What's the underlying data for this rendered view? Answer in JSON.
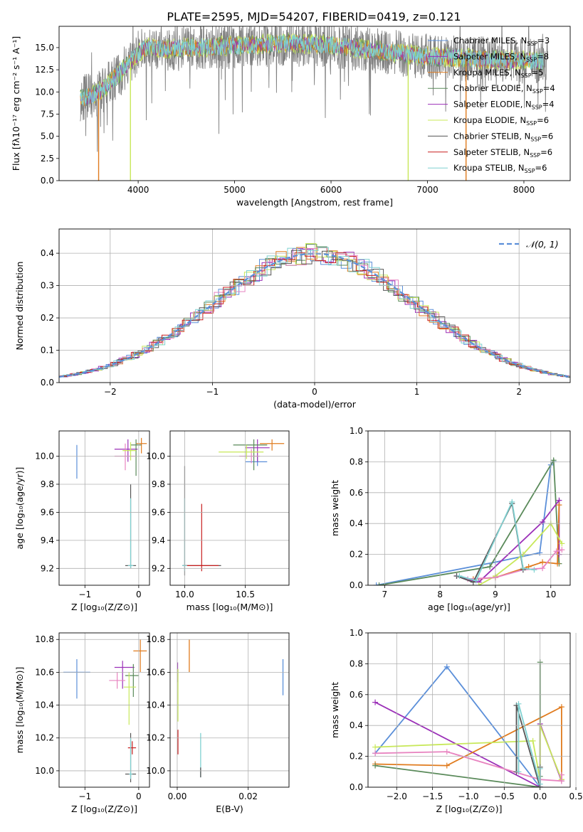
{
  "figure_title": "PLATE=2595, MJD=54207, FIBERID=0419, z=0.121",
  "colors": {
    "chabrier_miles": "#5b8fd9",
    "salpeter_miles": "#9b30b8",
    "kroupa_miles": "#e07b1e",
    "chabrier_elodie": "#5a8a5a",
    "salpeter_elodie": "#9b30b8",
    "kroupa_elodie": "#c8e85a",
    "chabrier_stelib": "#555555",
    "salpeter_stelib": "#c81e1e",
    "kroupa_stelib": "#7fd1d1",
    "pink": "#e884c0"
  },
  "chart_data": [
    {
      "id": "spectrum",
      "type": "line",
      "xlabel": "wavelength [Angstrom, rest frame]",
      "ylabel": "Flux [fλ10⁻¹⁷ erg cm⁻² s⁻¹ A⁻¹]",
      "xlim": [
        3180,
        8480
      ],
      "ylim": [
        0,
        17.4
      ],
      "xticks": [
        "4000",
        "5000",
        "6000",
        "7000",
        "8000"
      ],
      "yticks": [
        "0.0",
        "2.5",
        "5.0",
        "7.5",
        "10.0",
        "12.5",
        "15.0"
      ],
      "legend_position": "top-right",
      "legend": [
        {
          "label": "Chabrier MILES, N",
          "sub": "SSP",
          "suffix": "=3",
          "color": "#5b8fd9"
        },
        {
          "label": "Salpeter MILES, N",
          "sub": "SSP",
          "suffix": "=8",
          "color": "#9b30b8"
        },
        {
          "label": "Kroupa MILES, N",
          "sub": "SSP",
          "suffix": "=5",
          "color": "#e07b1e"
        },
        {
          "label": "Chabrier ELODIE, N",
          "sub": "SSP",
          "suffix": "=4",
          "color": "#5a8a5a"
        },
        {
          "label": "Salpeter ELODIE, N",
          "sub": "SSP",
          "suffix": "=4",
          "color": "#9b30b8"
        },
        {
          "label": "Kroupa ELODIE, N",
          "sub": "SSP",
          "suffix": "=6",
          "color": "#c8e85a"
        },
        {
          "label": "Chabrier STELIB, N",
          "sub": "SSP",
          "suffix": "=6",
          "color": "#555555"
        },
        {
          "label": "Salpeter STELIB, N",
          "sub": "SSP",
          "suffix": "=6",
          "color": "#c81e1e"
        },
        {
          "label": "Kroupa STELIB, N",
          "sub": "SSP",
          "suffix": "=6",
          "color": "#7fd1d1"
        }
      ],
      "continuum": {
        "x": [
          3400,
          3500,
          3600,
          3700,
          3800,
          3900,
          4000,
          4100,
          4200,
          4300,
          4500,
          5000,
          5500,
          6000,
          6500,
          7000,
          7500,
          8000,
          8250
        ],
        "y": [
          9.3,
          9.5,
          10.0,
          11.0,
          12.0,
          13.2,
          14.4,
          15.1,
          14.9,
          14.8,
          15.0,
          15.2,
          15.5,
          15.3,
          14.6,
          14.0,
          13.7,
          13.5,
          13.4
        ]
      },
      "drops": [
        {
          "x": 3590,
          "color": "#e07b1e"
        },
        {
          "x": 3920,
          "color": "#c8e85a"
        },
        {
          "x": 6800,
          "color": "#c8e85a"
        },
        {
          "x": 7400,
          "color": "#e07b1e"
        }
      ]
    },
    {
      "id": "residuals",
      "type": "line",
      "xlabel": "(data-model)/error",
      "ylabel": "Normed distribution",
      "xlim": [
        -2.5,
        2.5
      ],
      "ylim": [
        0,
        0.475
      ],
      "xticks": [
        "−2",
        "−1",
        "0",
        "1",
        "2"
      ],
      "yticks": [
        "0.0",
        "0.1",
        "0.2",
        "0.3",
        "0.4"
      ],
      "legend_position": "top-right",
      "legend": [
        {
          "label": "𝒩(0, 1)",
          "color": "#5b8fd9"
        }
      ],
      "bin_width": 0.1
    },
    {
      "id": "age-vs-Z",
      "type": "scatter",
      "xlabel": "Z [log₁₀(Z/Z⊙)]",
      "ylabel": "age  [log₁₀(age/yr)]",
      "xlim": [
        -1.48,
        0.2
      ],
      "ylim": [
        9.08,
        10.18
      ],
      "xticks": [
        "−1",
        "0"
      ],
      "yticks": [
        "9.2",
        "9.4",
        "9.6",
        "9.8",
        "10.0"
      ],
      "points": [
        {
          "x": -1.15,
          "y": 9.96,
          "xl": 1.35,
          "xh": 0.9,
          "yl": 9.84,
          "yh": 10.08,
          "color": "#5b8fd9"
        },
        {
          "x": -0.2,
          "y": 10.05,
          "xl": -0.45,
          "xh": -0.02,
          "yl": 9.96,
          "yh": 10.12,
          "color": "#9b30b8"
        },
        {
          "x": 0.05,
          "y": 10.09,
          "xl": -0.05,
          "xh": 0.15,
          "yl": 10.02,
          "yh": 10.13,
          "color": "#e07b1e"
        },
        {
          "x": -0.05,
          "y": 10.08,
          "xl": -0.15,
          "xh": 0.05,
          "yl": 9.86,
          "yh": 10.12,
          "color": "#5a8a5a"
        },
        {
          "x": -0.25,
          "y": 10.0,
          "xl": -0.45,
          "xh": -0.05,
          "yl": 9.9,
          "yh": 10.09,
          "color": "#e884c0"
        },
        {
          "x": -0.15,
          "y": 10.04,
          "xl": -0.3,
          "xh": -0.05,
          "yl": 9.97,
          "yh": 10.1,
          "color": "#c8e85a"
        },
        {
          "x": -0.15,
          "y": 9.22,
          "xl": -0.25,
          "xh": -0.05,
          "yl": 9.2,
          "yh": 9.8,
          "color": "#555555"
        },
        {
          "x": -0.15,
          "y": 9.22,
          "xl": -0.2,
          "xh": -0.1,
          "yl": 9.2,
          "yh": 9.7,
          "color": "#7fd1d1"
        }
      ]
    },
    {
      "id": "age-vs-mass",
      "type": "scatter",
      "xlabel": "mass [log₁₀(M/M⊙)]",
      "ylabel": "",
      "xlim": [
        9.88,
        10.86
      ],
      "ylim": [
        9.08,
        10.18
      ],
      "xticks": [
        "10.0",
        "10.5"
      ],
      "yticks": [
        "9.2",
        "9.4",
        "9.6",
        "9.8",
        "10.0"
      ],
      "points": [
        {
          "x": 10.6,
          "y": 9.96,
          "xl": 10.5,
          "xh": 10.68,
          "yl": 9.93,
          "yh": 10.0,
          "color": "#5b8fd9"
        },
        {
          "x": 10.6,
          "y": 10.06,
          "xl": 10.5,
          "xh": 10.7,
          "yl": 9.96,
          "yh": 10.12,
          "color": "#9b30b8"
        },
        {
          "x": 10.72,
          "y": 10.09,
          "xl": 10.62,
          "xh": 10.82,
          "yl": 10.04,
          "yh": 10.12,
          "color": "#e07b1e"
        },
        {
          "x": 10.57,
          "y": 10.08,
          "xl": 10.4,
          "xh": 10.68,
          "yl": 9.9,
          "yh": 10.12,
          "color": "#5a8a5a"
        },
        {
          "x": 10.55,
          "y": 10.0,
          "xl": 10.45,
          "xh": 10.62,
          "yl": 9.95,
          "yh": 10.05,
          "color": "#e884c0"
        },
        {
          "x": 10.51,
          "y": 10.03,
          "xl": 10.28,
          "xh": 10.65,
          "yl": 9.98,
          "yh": 10.08,
          "color": "#c8e85a"
        },
        {
          "x": 10.0,
          "y": 9.22,
          "xl": 9.98,
          "xh": 10.3,
          "yl": 9.15,
          "yh": 9.93,
          "color": "#555555"
        },
        {
          "x": 10.14,
          "y": 9.22,
          "xl": 10.0,
          "xh": 10.28,
          "yl": 9.18,
          "yh": 9.66,
          "color": "#c81e1e"
        },
        {
          "x": 10.0,
          "y": 9.22,
          "xl": 9.98,
          "xh": 10.02,
          "yl": 9.18,
          "yh": 9.7,
          "color": "#7fd1d1"
        }
      ]
    },
    {
      "id": "massweight-vs-age",
      "type": "line",
      "xlabel": "age  [log₁₀(age/yr)]",
      "ylabel": "mass weight",
      "xlim": [
        6.7,
        10.35
      ],
      "ylim": [
        0,
        1.0
      ],
      "xticks": [
        "7",
        "8",
        "9",
        "10"
      ],
      "yticks": [
        "0.0",
        "0.2",
        "0.4",
        "0.6",
        "0.8",
        "1.0"
      ],
      "series": [
        {
          "color": "#5b8fd9",
          "x": [
            6.85,
            9.0,
            9.8,
            10.0,
            10.05
          ],
          "y": [
            0.0,
            0.15,
            0.21,
            0.78,
            0.8
          ]
        },
        {
          "color": "#5a8a5a",
          "x": [
            6.9,
            8.9,
            10.05,
            10.15
          ],
          "y": [
            0.0,
            0.12,
            0.81,
            0.14
          ]
        },
        {
          "color": "#9b30b8",
          "x": [
            8.3,
            8.7,
            9.85,
            10.15,
            10.15
          ],
          "y": [
            0.06,
            0.02,
            0.41,
            0.55,
            0.2
          ]
        },
        {
          "color": "#e07b1e",
          "x": [
            8.6,
            9.0,
            9.6,
            9.85,
            10.12,
            10.15
          ],
          "y": [
            0.04,
            0.05,
            0.12,
            0.15,
            0.14,
            0.52
          ]
        },
        {
          "color": "#c8e85a",
          "x": [
            8.7,
            9.0,
            9.5,
            10.0,
            10.2
          ],
          "y": [
            0.0,
            0.06,
            0.2,
            0.4,
            0.27
          ]
        },
        {
          "color": "#e884c0",
          "x": [
            8.5,
            9.0,
            9.5,
            9.85,
            10.1,
            10.2
          ],
          "y": [
            0.04,
            0.05,
            0.1,
            0.11,
            0.22,
            0.23
          ]
        },
        {
          "color": "#555555",
          "x": [
            8.3,
            8.6,
            9.3,
            9.5
          ],
          "y": [
            0.06,
            0.02,
            0.53,
            0.1
          ]
        },
        {
          "color": "#7fd1d1",
          "x": [
            8.35,
            8.65,
            9.3,
            9.5,
            9.7
          ],
          "y": [
            0.06,
            0.03,
            0.54,
            0.11,
            0.1
          ]
        }
      ]
    },
    {
      "id": "mass-vs-Z",
      "type": "scatter",
      "xlabel": "Z [log₁₀(Z/Z⊙)]",
      "ylabel": "mass [log₁₀(M/M⊙)]",
      "xlim": [
        -1.48,
        0.2
      ],
      "ylim": [
        9.9,
        10.84
      ],
      "xticks": [
        "−1",
        "0"
      ],
      "yticks": [
        "10.0",
        "10.2",
        "10.4",
        "10.6",
        "10.8"
      ],
      "points": [
        {
          "x": -1.15,
          "y": 10.6,
          "xl": -1.4,
          "xh": -0.9,
          "yl": 10.44,
          "yh": 10.68,
          "color": "#5b8fd9"
        },
        {
          "x": -0.3,
          "y": 10.63,
          "xl": -0.45,
          "xh": -0.08,
          "yl": 10.5,
          "yh": 10.67,
          "color": "#9b30b8"
        },
        {
          "x": 0.03,
          "y": 10.73,
          "xl": -0.1,
          "xh": 0.15,
          "yl": 10.6,
          "yh": 10.8,
          "color": "#e07b1e"
        },
        {
          "x": -0.1,
          "y": 10.58,
          "xl": -0.25,
          "xh": 0.0,
          "yl": 10.45,
          "yh": 10.65,
          "color": "#5a8a5a"
        },
        {
          "x": -0.4,
          "y": 10.55,
          "xl": -0.55,
          "xh": -0.25,
          "yl": 10.5,
          "yh": 10.6,
          "color": "#e884c0"
        },
        {
          "x": -0.18,
          "y": 10.51,
          "xl": -0.28,
          "xh": -0.05,
          "yl": 10.28,
          "yh": 10.6,
          "color": "#c8e85a"
        },
        {
          "x": -0.15,
          "y": 9.98,
          "xl": -0.25,
          "xh": -0.05,
          "yl": 9.93,
          "yh": 10.23,
          "color": "#555555"
        },
        {
          "x": -0.12,
          "y": 10.14,
          "xl": -0.2,
          "xh": -0.05,
          "yl": 10.1,
          "yh": 10.18,
          "color": "#c81e1e"
        },
        {
          "x": -0.15,
          "y": 9.98,
          "xl": -0.18,
          "xh": -0.12,
          "yl": 9.95,
          "yh": 10.2,
          "color": "#7fd1d1"
        }
      ]
    },
    {
      "id": "mass-vs-ebv",
      "type": "scatter",
      "xlabel": "E(B-V)",
      "ylabel": "",
      "xlim": [
        -0.002,
        0.0315
      ],
      "ylim": [
        9.9,
        10.84
      ],
      "xticks": [
        "0.00",
        "0.02"
      ],
      "yticks": [
        "10.0",
        "10.2",
        "10.4",
        "10.6",
        "10.8"
      ],
      "segments": [
        {
          "x": 0.0298,
          "yl": 10.46,
          "yh": 10.68,
          "color": "#5b8fd9"
        },
        {
          "x": 0.0034,
          "yl": 10.6,
          "yh": 10.8,
          "color": "#e07b1e"
        },
        {
          "x": 0.0001,
          "yl": 10.54,
          "yh": 10.66,
          "color": "#9b30b8"
        },
        {
          "x": 0.0002,
          "yl": 10.3,
          "yh": 10.62,
          "color": "#c8e85a"
        },
        {
          "x": 0.0002,
          "yl": 10.1,
          "yh": 10.25,
          "color": "#c81e1e"
        },
        {
          "x": 0.0066,
          "yl": 9.96,
          "yh": 10.23,
          "color": "#7fd1d1"
        },
        {
          "x": 0.0066,
          "yl": 9.96,
          "yh": 10.02,
          "color": "#555555"
        }
      ]
    },
    {
      "id": "massweight-vs-Z",
      "type": "line",
      "xlabel": "Z [log₁₀(Z/Z⊙)]",
      "ylabel": "mass weight",
      "xlim": [
        -2.4,
        0.42
      ],
      "ylim": [
        0,
        1.0
      ],
      "xticks": [
        "−2.0",
        "−1.5",
        "−1.0",
        "−0.5",
        "0.0",
        "0.5"
      ],
      "yticks": [
        "0.0",
        "0.2",
        "0.4",
        "0.6",
        "0.8",
        "1.0"
      ],
      "series": [
        {
          "color": "#5b8fd9",
          "x": [
            -2.3,
            -1.3,
            0.0,
            0.0
          ],
          "y": [
            0.22,
            0.78,
            0.0,
            0.05
          ]
        },
        {
          "color": "#9b30b8",
          "x": [
            -2.3,
            0.0,
            0.0,
            0.3
          ],
          "y": [
            0.55,
            0.0,
            0.41,
            0.04
          ]
        },
        {
          "color": "#e07b1e",
          "x": [
            -2.3,
            -1.3,
            0.3,
            0.3
          ],
          "y": [
            0.15,
            0.14,
            0.52,
            0.05
          ]
        },
        {
          "color": "#5a8a5a",
          "x": [
            -2.3,
            0.0,
            0.0,
            0.0
          ],
          "y": [
            0.14,
            0.0,
            0.81,
            0.07
          ]
        },
        {
          "color": "#c8e85a",
          "x": [
            -2.3,
            -0.1,
            0.0,
            0.0,
            0.3
          ],
          "y": [
            0.26,
            0.3,
            0.05,
            0.4,
            0.05
          ]
        },
        {
          "color": "#e884c0",
          "x": [
            -2.3,
            -1.3,
            0.0,
            0.3,
            0.3
          ],
          "y": [
            0.22,
            0.23,
            0.05,
            0.04,
            0.08
          ]
        },
        {
          "color": "#555555",
          "x": [
            -0.33,
            -0.33,
            0.0,
            0.0
          ],
          "y": [
            0.1,
            0.53,
            0.0,
            0.13
          ]
        },
        {
          "color": "#7fd1d1",
          "x": [
            -0.3,
            -0.3,
            0.0,
            0.0
          ],
          "y": [
            0.1,
            0.54,
            0.02,
            0.12
          ]
        }
      ]
    }
  ]
}
